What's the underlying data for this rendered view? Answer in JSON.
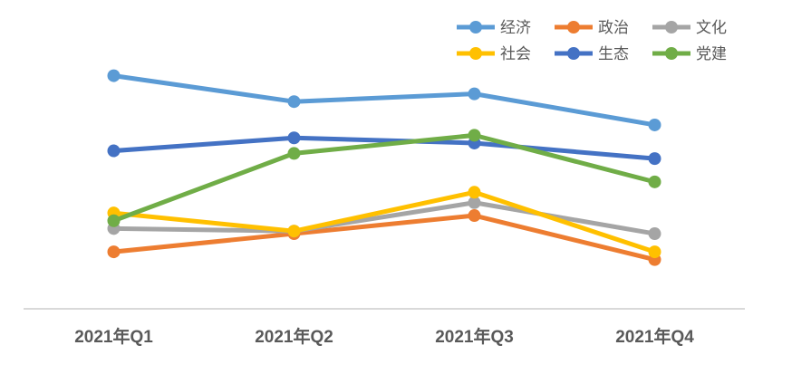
{
  "chart_data": {
    "type": "line",
    "title": "",
    "xlabel": "",
    "ylabel": "",
    "categories": [
      "2021年Q1",
      "2021年Q2",
      "2021年Q3",
      "2021年Q4"
    ],
    "series": [
      {
        "key": "economy",
        "name": "经济",
        "color": "#5B9BD5",
        "values": [
          90,
          80,
          83,
          71
        ]
      },
      {
        "key": "politics",
        "name": "政治",
        "color": "#ED7D31",
        "values": [
          22,
          29,
          36,
          19
        ]
      },
      {
        "key": "culture",
        "name": "文化",
        "color": "#A5A5A5",
        "values": [
          31,
          30,
          41,
          29
        ]
      },
      {
        "key": "society",
        "name": "社会",
        "color": "#FFC000",
        "values": [
          37,
          30,
          45,
          22
        ]
      },
      {
        "key": "ecology",
        "name": "生态",
        "color": "#4472C4",
        "values": [
          61,
          66,
          64,
          58
        ]
      },
      {
        "key": "party-building",
        "name": "党建",
        "color": "#70AD47",
        "values": [
          34,
          60,
          67,
          49
        ]
      }
    ],
    "ylim": [
      0,
      100
    ],
    "y_axis_labels_visible": false,
    "gridlines": false,
    "marker": "circle",
    "legend_position": "top-right",
    "legend_columns": 3,
    "axis_line_color": "#D9D9D9",
    "label_color": "#595959"
  }
}
